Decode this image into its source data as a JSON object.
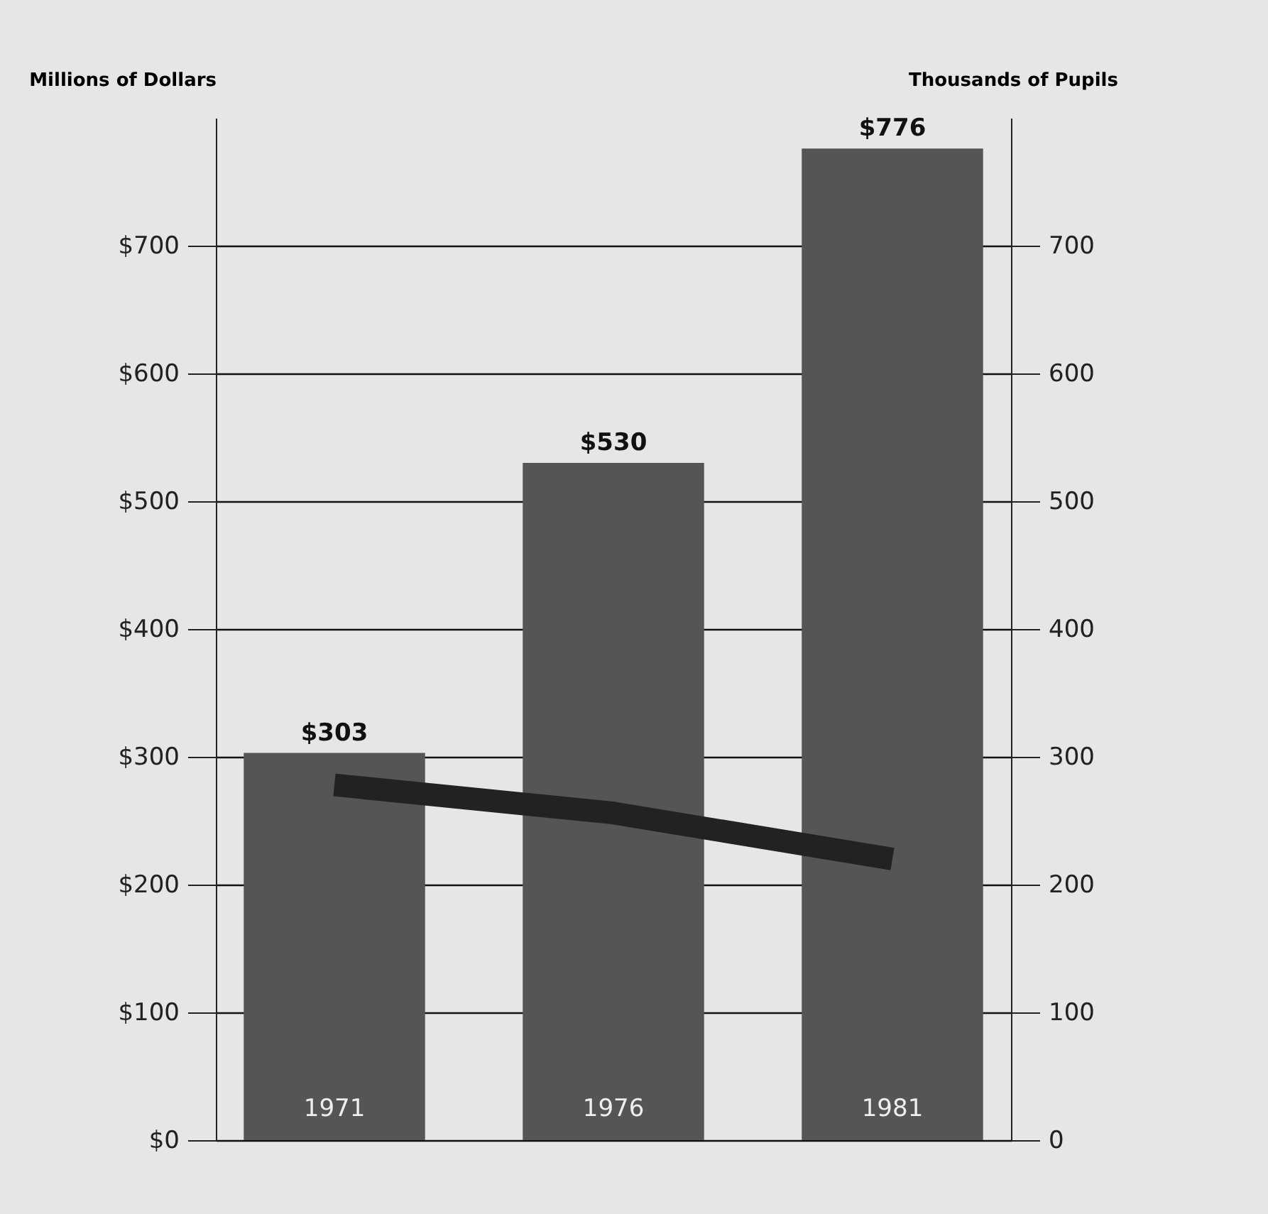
{
  "chart_data": {
    "type": "bar",
    "categories": [
      "1971",
      "1976",
      "1981"
    ],
    "series": [
      {
        "color": "#555555",
        "values": [
          303,
          530,
          776
        ],
        "value_labels": [
          "$303",
          "$530",
          "$776"
        ]
      },
      {
        "type": "line",
        "axis": "y2",
        "color": "#222222",
        "values": [
          278,
          256,
          220
        ]
      }
    ],
    "ylabel": "Millions of Dollars",
    "y2label": "Thousands of Pupils",
    "ylim": [
      0,
      800
    ],
    "yticks": [
      {
        "value": 0,
        "label": "$0"
      },
      {
        "value": 100,
        "label": "$100"
      },
      {
        "value": 200,
        "label": "$200"
      },
      {
        "value": 300,
        "label": "$300"
      },
      {
        "value": 400,
        "label": "$400"
      },
      {
        "value": 500,
        "label": "$500"
      },
      {
        "value": 600,
        "label": "$600"
      },
      {
        "value": 700,
        "label": "$700"
      }
    ],
    "y2lim": [
      0,
      800
    ],
    "y2ticks": [
      0,
      100,
      200,
      300,
      400,
      500,
      600,
      700
    ],
    "grid": "y",
    "marker": "none",
    "line_style": "solid"
  }
}
